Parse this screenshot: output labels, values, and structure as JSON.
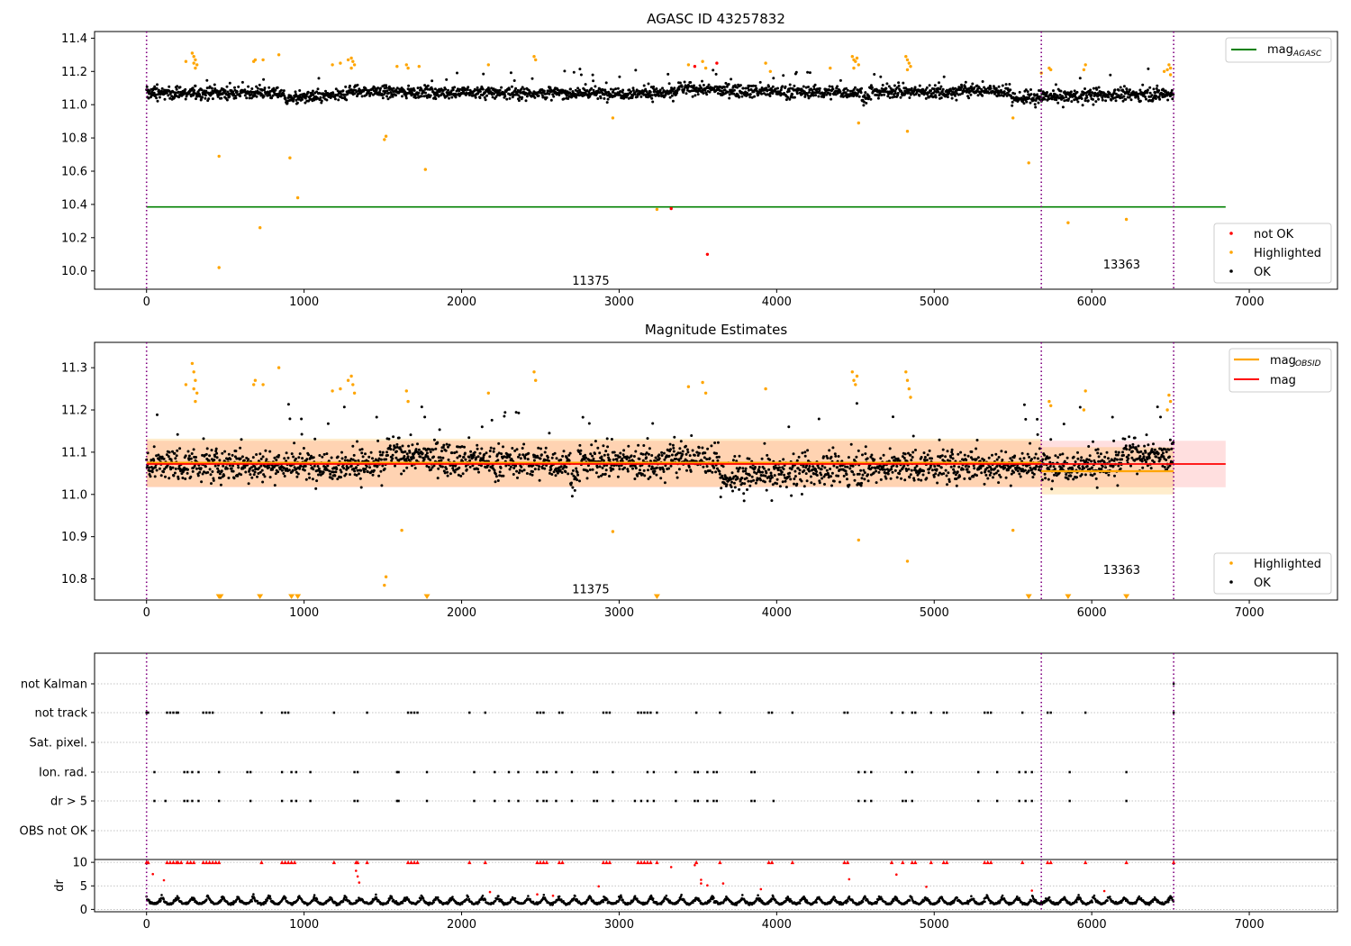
{
  "chart_data": [
    {
      "type": "scatter",
      "title": "AGASC ID 43257832",
      "xlabel": "",
      "ylabel": "",
      "xlim": [
        -330,
        7560
      ],
      "ylim": [
        9.89,
        11.44
      ],
      "xticks": [
        0,
        1000,
        2000,
        3000,
        4000,
        5000,
        6000,
        7000
      ],
      "yticks": [
        10.0,
        10.2,
        10.4,
        10.6,
        10.8,
        11.0,
        11.2,
        11.4
      ],
      "ytick_labels": [
        "10.0",
        "10.2",
        "10.4",
        "10.6",
        "10.8",
        "11.0",
        "11.2",
        "11.4"
      ],
      "obsid_boundaries": [
        0,
        5680,
        6520
      ],
      "obsid_labels": [
        {
          "text": "11375",
          "x": 2820,
          "y": 9.97
        },
        {
          "text": "13363",
          "x": 6190,
          "y": 10.07
        }
      ],
      "x_range_data": [
        0,
        6520
      ],
      "lines": [
        {
          "name": "mag_AGASC",
          "legend": "mag",
          "legend_sub": "AGASC",
          "y": 10.385,
          "x0": 0,
          "x1": 6850,
          "color": "#008000"
        }
      ],
      "series": [
        {
          "name": "not OK",
          "color": "#ff0000",
          "points": [
            [
              3330,
              10.375
            ],
            [
              3560,
              10.1
            ],
            [
              3620,
              11.25
            ],
            [
              3480,
              11.23
            ]
          ]
        },
        {
          "name": "Highlighted",
          "color": "#ffa500",
          "points": [
            [
              460,
              10.69
            ],
            [
              460,
              10.02
            ],
            [
              720,
              10.26
            ],
            [
              910,
              10.68
            ],
            [
              960,
              10.44
            ],
            [
              1510,
              10.79
            ],
            [
              1520,
              10.81
            ],
            [
              1770,
              10.61
            ],
            [
              2960,
              10.92
            ],
            [
              3240,
              10.37
            ],
            [
              4520,
              10.89
            ],
            [
              4830,
              10.84
            ],
            [
              5600,
              10.65
            ],
            [
              5850,
              10.29
            ],
            [
              6220,
              10.31
            ],
            [
              5500,
              10.92
            ],
            [
              290,
              11.31
            ],
            [
              300,
              11.29
            ],
            [
              310,
              11.27
            ],
            [
              300,
              11.25
            ],
            [
              320,
              11.24
            ],
            [
              310,
              11.22
            ],
            [
              250,
              11.26
            ],
            [
              680,
              11.26
            ],
            [
              690,
              11.27
            ],
            [
              740,
              11.27
            ],
            [
              840,
              11.3
            ],
            [
              1180,
              11.24
            ],
            [
              1230,
              11.25
            ],
            [
              1280,
              11.27
            ],
            [
              1300,
              11.28
            ],
            [
              1310,
              11.26
            ],
            [
              1320,
              11.24
            ],
            [
              1300,
              11.22
            ],
            [
              1590,
              11.23
            ],
            [
              1650,
              11.24
            ],
            [
              1660,
              11.22
            ],
            [
              1730,
              11.23
            ],
            [
              2170,
              11.24
            ],
            [
              2460,
              11.29
            ],
            [
              2470,
              11.27
            ],
            [
              3440,
              11.24
            ],
            [
              3530,
              11.26
            ],
            [
              3550,
              11.22
            ],
            [
              3930,
              11.25
            ],
            [
              3960,
              11.2
            ],
            [
              4340,
              11.22
            ],
            [
              4480,
              11.29
            ],
            [
              4490,
              11.27
            ],
            [
              4500,
              11.26
            ],
            [
              4510,
              11.28
            ],
            [
              4520,
              11.24
            ],
            [
              4490,
              11.22
            ],
            [
              4820,
              11.29
            ],
            [
              4830,
              11.27
            ],
            [
              4840,
              11.25
            ],
            [
              4850,
              11.23
            ],
            [
              4830,
              11.21
            ],
            [
              5680,
              11.19
            ],
            [
              5730,
              11.22
            ],
            [
              5740,
              11.21
            ],
            [
              5960,
              11.24
            ],
            [
              5950,
              11.21
            ],
            [
              6460,
              11.2
            ],
            [
              6480,
              11.21
            ],
            [
              6500,
              11.22
            ],
            [
              6490,
              11.24
            ],
            [
              6500,
              11.18
            ]
          ]
        },
        {
          "name": "OK",
          "color": "#000000",
          "generated": "dense",
          "base": 11.07,
          "spread": 0.07
        }
      ],
      "legends": [
        {
          "position": "upper-right",
          "entries": [
            "mag_AGASC"
          ]
        },
        {
          "position": "lower-right",
          "entries": [
            "not OK",
            "Highlighted",
            "OK"
          ]
        }
      ]
    },
    {
      "type": "scatter",
      "title": "Magnitude Estimates",
      "xlabel": "",
      "ylabel": "",
      "xlim": [
        -330,
        7560
      ],
      "ylim": [
        10.75,
        11.36
      ],
      "xticks": [
        0,
        1000,
        2000,
        3000,
        4000,
        5000,
        6000,
        7000
      ],
      "yticks": [
        10.8,
        10.9,
        11.0,
        11.1,
        11.2,
        11.3
      ],
      "ytick_labels": [
        "10.8",
        "10.9",
        "11.0",
        "11.1",
        "11.2",
        "11.3"
      ],
      "obsid_boundaries": [
        0,
        5680,
        6520
      ],
      "obsid_labels": [
        {
          "text": "11375",
          "x": 2820,
          "y": 10.775
        },
        {
          "text": "13363",
          "x": 6190,
          "y": 10.82
        }
      ],
      "bands": [
        {
          "name": "mag band",
          "y0": 11.017,
          "y1": 11.127,
          "x0": 0,
          "x1": 6850,
          "color": "#ff000020"
        },
        {
          "name": "mag_OBSID band 11375",
          "y0": 11.018,
          "y1": 11.132,
          "x0": 0,
          "x1": 5680,
          "color": "#ffa50033"
        },
        {
          "name": "mag_OBSID band 13363",
          "y0": 11.0,
          "y1": 11.112,
          "x0": 5680,
          "x1": 6520,
          "color": "#ffa50033"
        }
      ],
      "lines": [
        {
          "name": "mag_OBSID",
          "legend": "mag",
          "legend_sub": "OBSID",
          "color": "#ffa500",
          "segments": [
            [
              0,
              5680,
              11.075
            ],
            [
              5680,
              6520,
              11.055
            ]
          ]
        },
        {
          "name": "mag",
          "legend": "mag",
          "color": "#ff0000",
          "segments": [
            [
              0,
              6850,
              11.072
            ]
          ]
        }
      ],
      "series": [
        {
          "name": "Highlighted",
          "color": "#ffa500",
          "points": [
            [
              1510,
              10.785
            ],
            [
              1520,
              10.805
            ],
            [
              1620,
              10.915
            ],
            [
              2960,
              10.912
            ],
            [
              4520,
              10.892
            ],
            [
              4830,
              10.842
            ],
            [
              5500,
              10.915
            ],
            [
              290,
              11.31
            ],
            [
              300,
              11.29
            ],
            [
              310,
              11.27
            ],
            [
              300,
              11.25
            ],
            [
              320,
              11.24
            ],
            [
              310,
              11.22
            ],
            [
              250,
              11.26
            ],
            [
              680,
              11.26
            ],
            [
              690,
              11.27
            ],
            [
              740,
              11.26
            ],
            [
              840,
              11.3
            ],
            [
              1180,
              11.245
            ],
            [
              1230,
              11.25
            ],
            [
              1280,
              11.27
            ],
            [
              1300,
              11.28
            ],
            [
              1310,
              11.26
            ],
            [
              1320,
              11.24
            ],
            [
              1650,
              11.245
            ],
            [
              1660,
              11.22
            ],
            [
              2170,
              11.24
            ],
            [
              2460,
              11.29
            ],
            [
              2470,
              11.27
            ],
            [
              3440,
              11.255
            ],
            [
              3530,
              11.265
            ],
            [
              3550,
              11.24
            ],
            [
              3930,
              11.25
            ],
            [
              4480,
              11.29
            ],
            [
              4490,
              11.27
            ],
            [
              4500,
              11.26
            ],
            [
              4510,
              11.28
            ],
            [
              4820,
              11.29
            ],
            [
              4830,
              11.27
            ],
            [
              4840,
              11.25
            ],
            [
              4850,
              11.23
            ],
            [
              5730,
              11.22
            ],
            [
              5740,
              11.21
            ],
            [
              5960,
              11.245
            ],
            [
              5950,
              11.2
            ],
            [
              6480,
              11.2
            ],
            [
              6500,
              11.22
            ],
            [
              6490,
              11.235
            ]
          ]
        },
        {
          "name": "Highlighted (below axis)",
          "color": "#ffa500",
          "marker": "triangle-down",
          "x": [
            460,
            470,
            720,
            920,
            960,
            1780,
            3240,
            5600,
            5850,
            6220
          ]
        },
        {
          "name": "OK",
          "color": "#000000",
          "generated": "dense",
          "base": 11.07,
          "spread": 0.07
        }
      ],
      "legends": [
        {
          "position": "upper-right",
          "entries": [
            "mag_OBSID",
            "mag"
          ]
        },
        {
          "position": "lower-right",
          "entries": [
            "Highlighted",
            "OK"
          ]
        }
      ]
    },
    {
      "type": "scatter",
      "title": "",
      "xlim": [
        -330,
        7560
      ],
      "categories": [
        "not Kalman",
        "not track",
        "Sat. pixel.",
        "Ion. rad.",
        "dr > 5",
        "OBS not OK"
      ],
      "obsid_boundaries": [
        0,
        5680,
        6520
      ],
      "flags": {
        "not Kalman": [
          6520
        ],
        "not track": [
          0,
          10,
          130,
          150,
          170,
          190,
          200,
          360,
          380,
          400,
          420,
          730,
          860,
          880,
          900,
          1190,
          1400,
          1660,
          1680,
          1700,
          1720,
          2050,
          2150,
          2480,
          2500,
          2520,
          2620,
          2640,
          2900,
          2920,
          2940,
          3120,
          3140,
          3160,
          3180,
          3200,
          3240,
          3490,
          3640,
          3950,
          3970,
          4100,
          4430,
          4450,
          4730,
          4800,
          4860,
          4880,
          4980,
          5060,
          5080,
          5320,
          5340,
          5360,
          5560,
          5720,
          5740,
          5960,
          6520
        ],
        "Sat. pixel.": [],
        "Ion. rad.": [
          50,
          240,
          260,
          290,
          330,
          460,
          640,
          660,
          860,
          920,
          950,
          1040,
          1320,
          1340,
          1590,
          1600,
          1780,
          2080,
          2210,
          2300,
          2360,
          2480,
          2520,
          2540,
          2600,
          2700,
          2840,
          2860,
          2960,
          3180,
          3220,
          3360,
          3480,
          3500,
          3560,
          3600,
          3620,
          3840,
          3860,
          4520,
          4560,
          4600,
          4820,
          4860,
          5280,
          5400,
          5540,
          5580,
          5620,
          5860,
          6220
        ],
        "dr > 5": [
          50,
          120,
          240,
          260,
          290,
          330,
          460,
          660,
          860,
          920,
          950,
          1040,
          1320,
          1340,
          1590,
          1600,
          1780,
          2080,
          2210,
          2300,
          2360,
          2480,
          2520,
          2540,
          2600,
          2700,
          2840,
          2860,
          2960,
          3100,
          3140,
          3180,
          3220,
          3360,
          3480,
          3500,
          3560,
          3600,
          3620,
          3840,
          3860,
          3980,
          4520,
          4560,
          4600,
          4800,
          4820,
          4860,
          5280,
          5400,
          5540,
          5580,
          5620,
          5860,
          6220
        ],
        "OBS not OK": []
      }
    },
    {
      "type": "scatter",
      "title": "",
      "ylabel": "dr",
      "xlim": [
        -330,
        7560
      ],
      "ylim": [
        -0.5,
        10.6
      ],
      "xticks": [
        0,
        1000,
        2000,
        3000,
        4000,
        5000,
        6000,
        7000
      ],
      "yticks": [
        0,
        5,
        10
      ],
      "ytick_labels": [
        "0",
        "5",
        "10"
      ],
      "obsid_boundaries": [
        0,
        5680,
        6520
      ],
      "series": [
        {
          "name": "dr capped",
          "color": "#ff0000",
          "marker": "triangle-up",
          "y": 10,
          "x": [
            0,
            10,
            130,
            150,
            170,
            190,
            200,
            220,
            260,
            280,
            300,
            360,
            380,
            400,
            420,
            440,
            460,
            730,
            860,
            880,
            900,
            920,
            940,
            1190,
            1330,
            1340,
            1400,
            1660,
            1680,
            1700,
            1720,
            2050,
            2150,
            2480,
            2500,
            2520,
            2540,
            2620,
            2640,
            2900,
            2920,
            2940,
            3120,
            3140,
            3160,
            3180,
            3200,
            3240,
            3490,
            3640,
            3950,
            3970,
            4100,
            4430,
            4450,
            4730,
            4800,
            4860,
            4880,
            4980,
            5060,
            5080,
            5320,
            5340,
            5360,
            5560,
            5720,
            5740,
            5960,
            6220,
            6520
          ]
        },
        {
          "name": "dr red",
          "color": "#ff0000",
          "points": [
            [
              40,
              7.5
            ],
            [
              110,
              6.2
            ],
            [
              1330,
              8.2
            ],
            [
              1340,
              7.0
            ],
            [
              1350,
              5.7
            ],
            [
              3520,
              6.3
            ],
            [
              3520,
              5.5
            ],
            [
              3560,
              5.1
            ],
            [
              3660,
              5.5
            ],
            [
              3900,
              4.3
            ],
            [
              4460,
              6.4
            ],
            [
              4760,
              7.4
            ],
            [
              4950,
              4.8
            ],
            [
              2870,
              4.9
            ],
            [
              3330,
              9.0
            ],
            [
              3480,
              9.4
            ],
            [
              5620,
              4.0
            ],
            [
              6080,
              3.9
            ],
            [
              2180,
              3.7
            ],
            [
              2480,
              3.2
            ],
            [
              2580,
              2.9
            ]
          ]
        },
        {
          "name": "dr OK",
          "color": "#000000",
          "generated": "arcs",
          "base": 1.2
        }
      ]
    }
  ]
}
